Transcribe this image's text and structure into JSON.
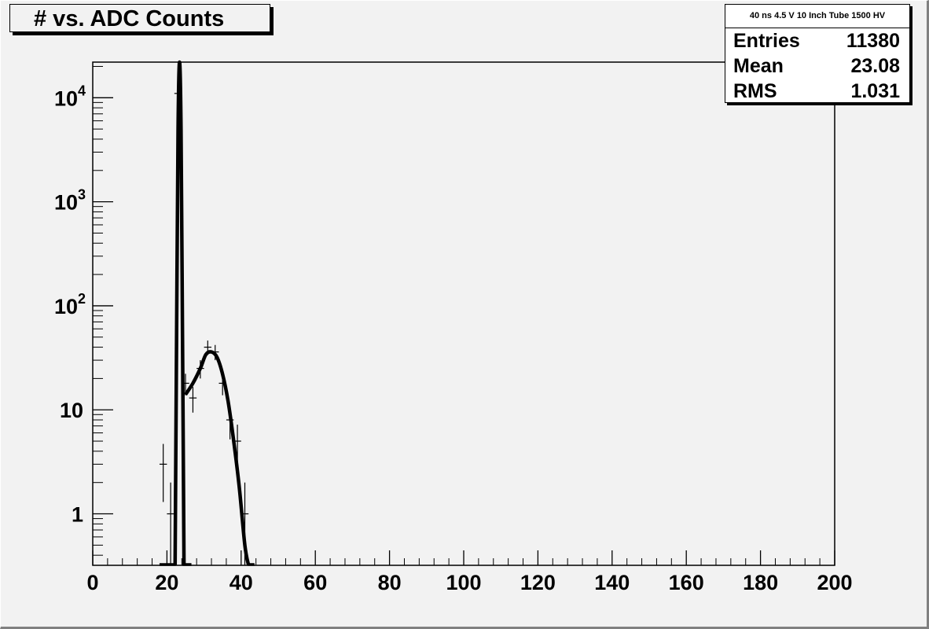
{
  "title": "# vs. ADC Counts",
  "stats": {
    "name": "40 ns 4.5 V 10 Inch Tube 1500 HV",
    "rows": [
      {
        "label": "Entries",
        "value": "11380"
      },
      {
        "label": "Mean",
        "value": "23.08"
      },
      {
        "label": "RMS",
        "value": "1.031"
      }
    ]
  },
  "chart_data": {
    "type": "scatter",
    "title": "# vs. ADC Counts",
    "xlabel": "",
    "ylabel": "",
    "xlim": [
      0,
      200
    ],
    "ylim": [
      0.32,
      22000
    ],
    "y_scale": "log",
    "x_ticks": [
      0,
      20,
      40,
      60,
      80,
      100,
      120,
      140,
      160,
      180,
      200
    ],
    "y_ticks": [
      {
        "value": 1,
        "label": "1"
      },
      {
        "value": 10,
        "label": "10"
      },
      {
        "value": 100,
        "label": "10",
        "exp": "2"
      },
      {
        "value": 1000,
        "label": "10",
        "exp": "3"
      },
      {
        "value": 10000,
        "label": "10",
        "exp": "4"
      }
    ],
    "points": [
      {
        "x": 19,
        "y": 3,
        "err": 1.7
      },
      {
        "x": 21,
        "y": 1,
        "err": 1
      },
      {
        "x": 23,
        "y": 11000,
        "err": 105
      },
      {
        "x": 25,
        "y": 18,
        "err": 4.2
      },
      {
        "x": 27,
        "y": 13,
        "err": 3.6
      },
      {
        "x": 29,
        "y": 25,
        "err": 5
      },
      {
        "x": 31,
        "y": 40,
        "err": 6.3
      },
      {
        "x": 33,
        "y": 36,
        "err": 6
      },
      {
        "x": 35,
        "y": 18,
        "err": 4.2
      },
      {
        "x": 37,
        "y": 8,
        "err": 2.8
      },
      {
        "x": 39,
        "y": 5,
        "err": 2.2
      },
      {
        "x": 41,
        "y": 1,
        "err": 1
      }
    ],
    "fits": [
      {
        "name": "pedestal",
        "x": [
          22.2,
          22.6,
          23.0,
          23.4,
          23.8,
          24.2,
          24.6
        ],
        "y": [
          0.32,
          50,
          5000,
          22000,
          5000,
          50,
          0.32
        ]
      },
      {
        "name": "signal",
        "x": [
          25.0,
          27.0,
          29.0,
          30.5,
          32.0,
          33.5,
          35.0,
          36.5,
          38.0,
          39.5,
          41.0,
          42.0
        ],
        "y": [
          14,
          18,
          25,
          34,
          36,
          32,
          22,
          12,
          5,
          1.8,
          0.5,
          0.32
        ]
      }
    ]
  }
}
